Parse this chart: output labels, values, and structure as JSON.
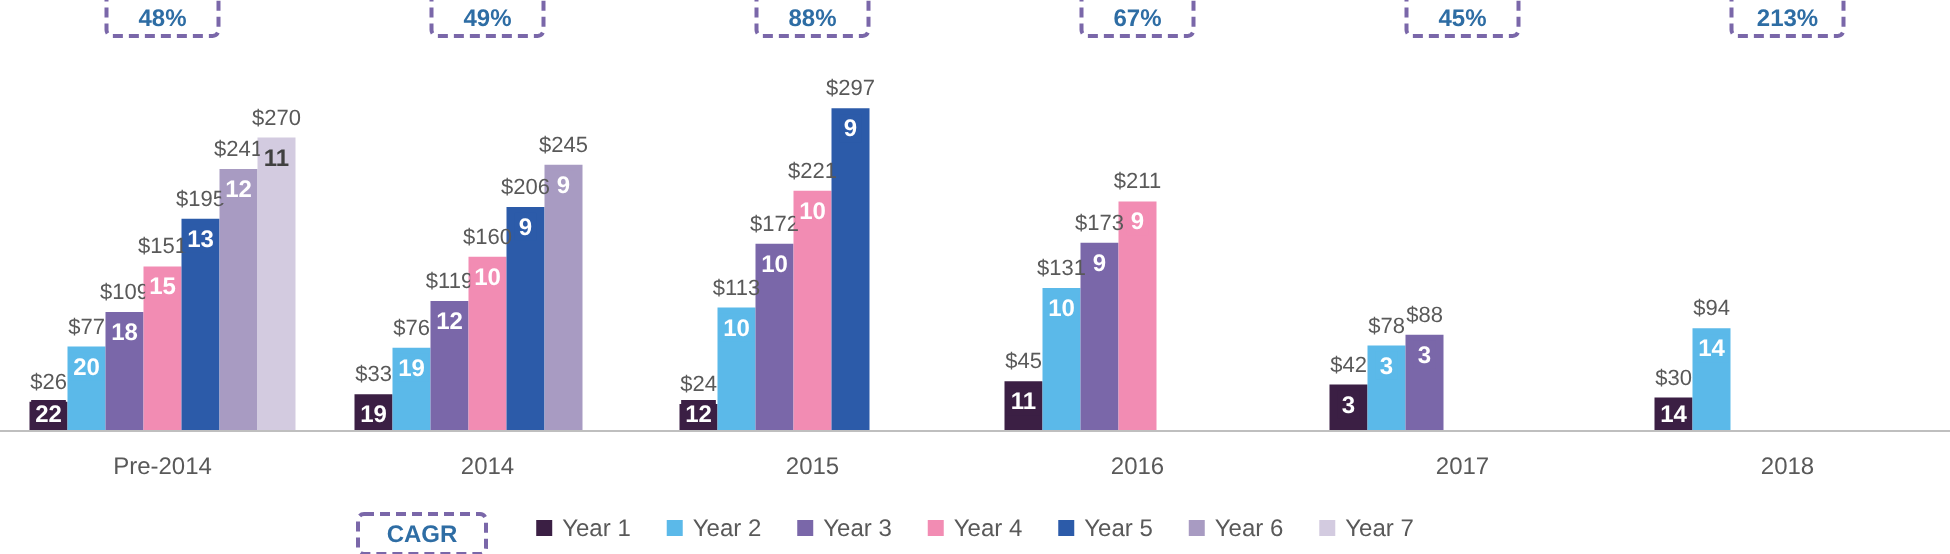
{
  "chart_data": {
    "type": "bar",
    "categories": [
      "Pre-2014",
      "2014",
      "2015",
      "2016",
      "2017",
      "2018"
    ],
    "series": [
      {
        "name": "Year 1",
        "color": "#3b1f44",
        "values": [
          26,
          33,
          24,
          45,
          42,
          30
        ],
        "value_labels": [
          "$26",
          "$33",
          "$24",
          "$45",
          "$42",
          "$30"
        ]
      },
      {
        "name": "Year 2",
        "color": "#5bb9e9",
        "values": [
          77,
          76,
          113,
          131,
          78,
          94
        ],
        "value_labels": [
          "$77",
          "$76",
          "$113",
          "$131",
          "$78",
          "$94"
        ]
      },
      {
        "name": "Year 3",
        "color": "#7a67a9",
        "values": [
          109,
          119,
          172,
          173,
          88,
          null
        ],
        "value_labels": [
          "$109",
          "$119",
          "$172",
          "$173",
          "$88",
          null
        ]
      },
      {
        "name": "Year 4",
        "color": "#f28cb3",
        "values": [
          151,
          160,
          221,
          211,
          null,
          null
        ],
        "value_labels": [
          "$151",
          "$160",
          "$221",
          "$211",
          null,
          null
        ]
      },
      {
        "name": "Year 5",
        "color": "#2c5ba9",
        "values": [
          195,
          206,
          297,
          null,
          null,
          null
        ],
        "value_labels": [
          "$195",
          "$206",
          "$297",
          null,
          null,
          null
        ]
      },
      {
        "name": "Year 6",
        "color": "#a89bc2",
        "values": [
          241,
          245,
          null,
          null,
          null,
          null
        ],
        "value_labels": [
          "$241",
          "$245",
          null,
          null,
          null,
          null
        ]
      },
      {
        "name": "Year 7",
        "color": "#d3cbe0",
        "values": [
          270,
          null,
          null,
          null,
          null,
          null
        ],
        "value_labels": [
          "$270",
          null,
          null,
          null,
          null,
          null
        ]
      }
    ],
    "annotations": [
      "48%",
      "49%",
      "88%",
      "67%",
      "45%",
      "213%",
      "CAGR",
      "22",
      "20",
      "18",
      "15",
      "13",
      "12",
      "11",
      "19",
      "19",
      "12",
      "10",
      "9",
      "9",
      "12",
      "10",
      "10",
      "10",
      "9",
      "11",
      "10",
      "9",
      "9",
      "3",
      "3",
      "3",
      "14",
      "14"
    ],
    "legend": "bottom",
    "grid": false
  }
}
